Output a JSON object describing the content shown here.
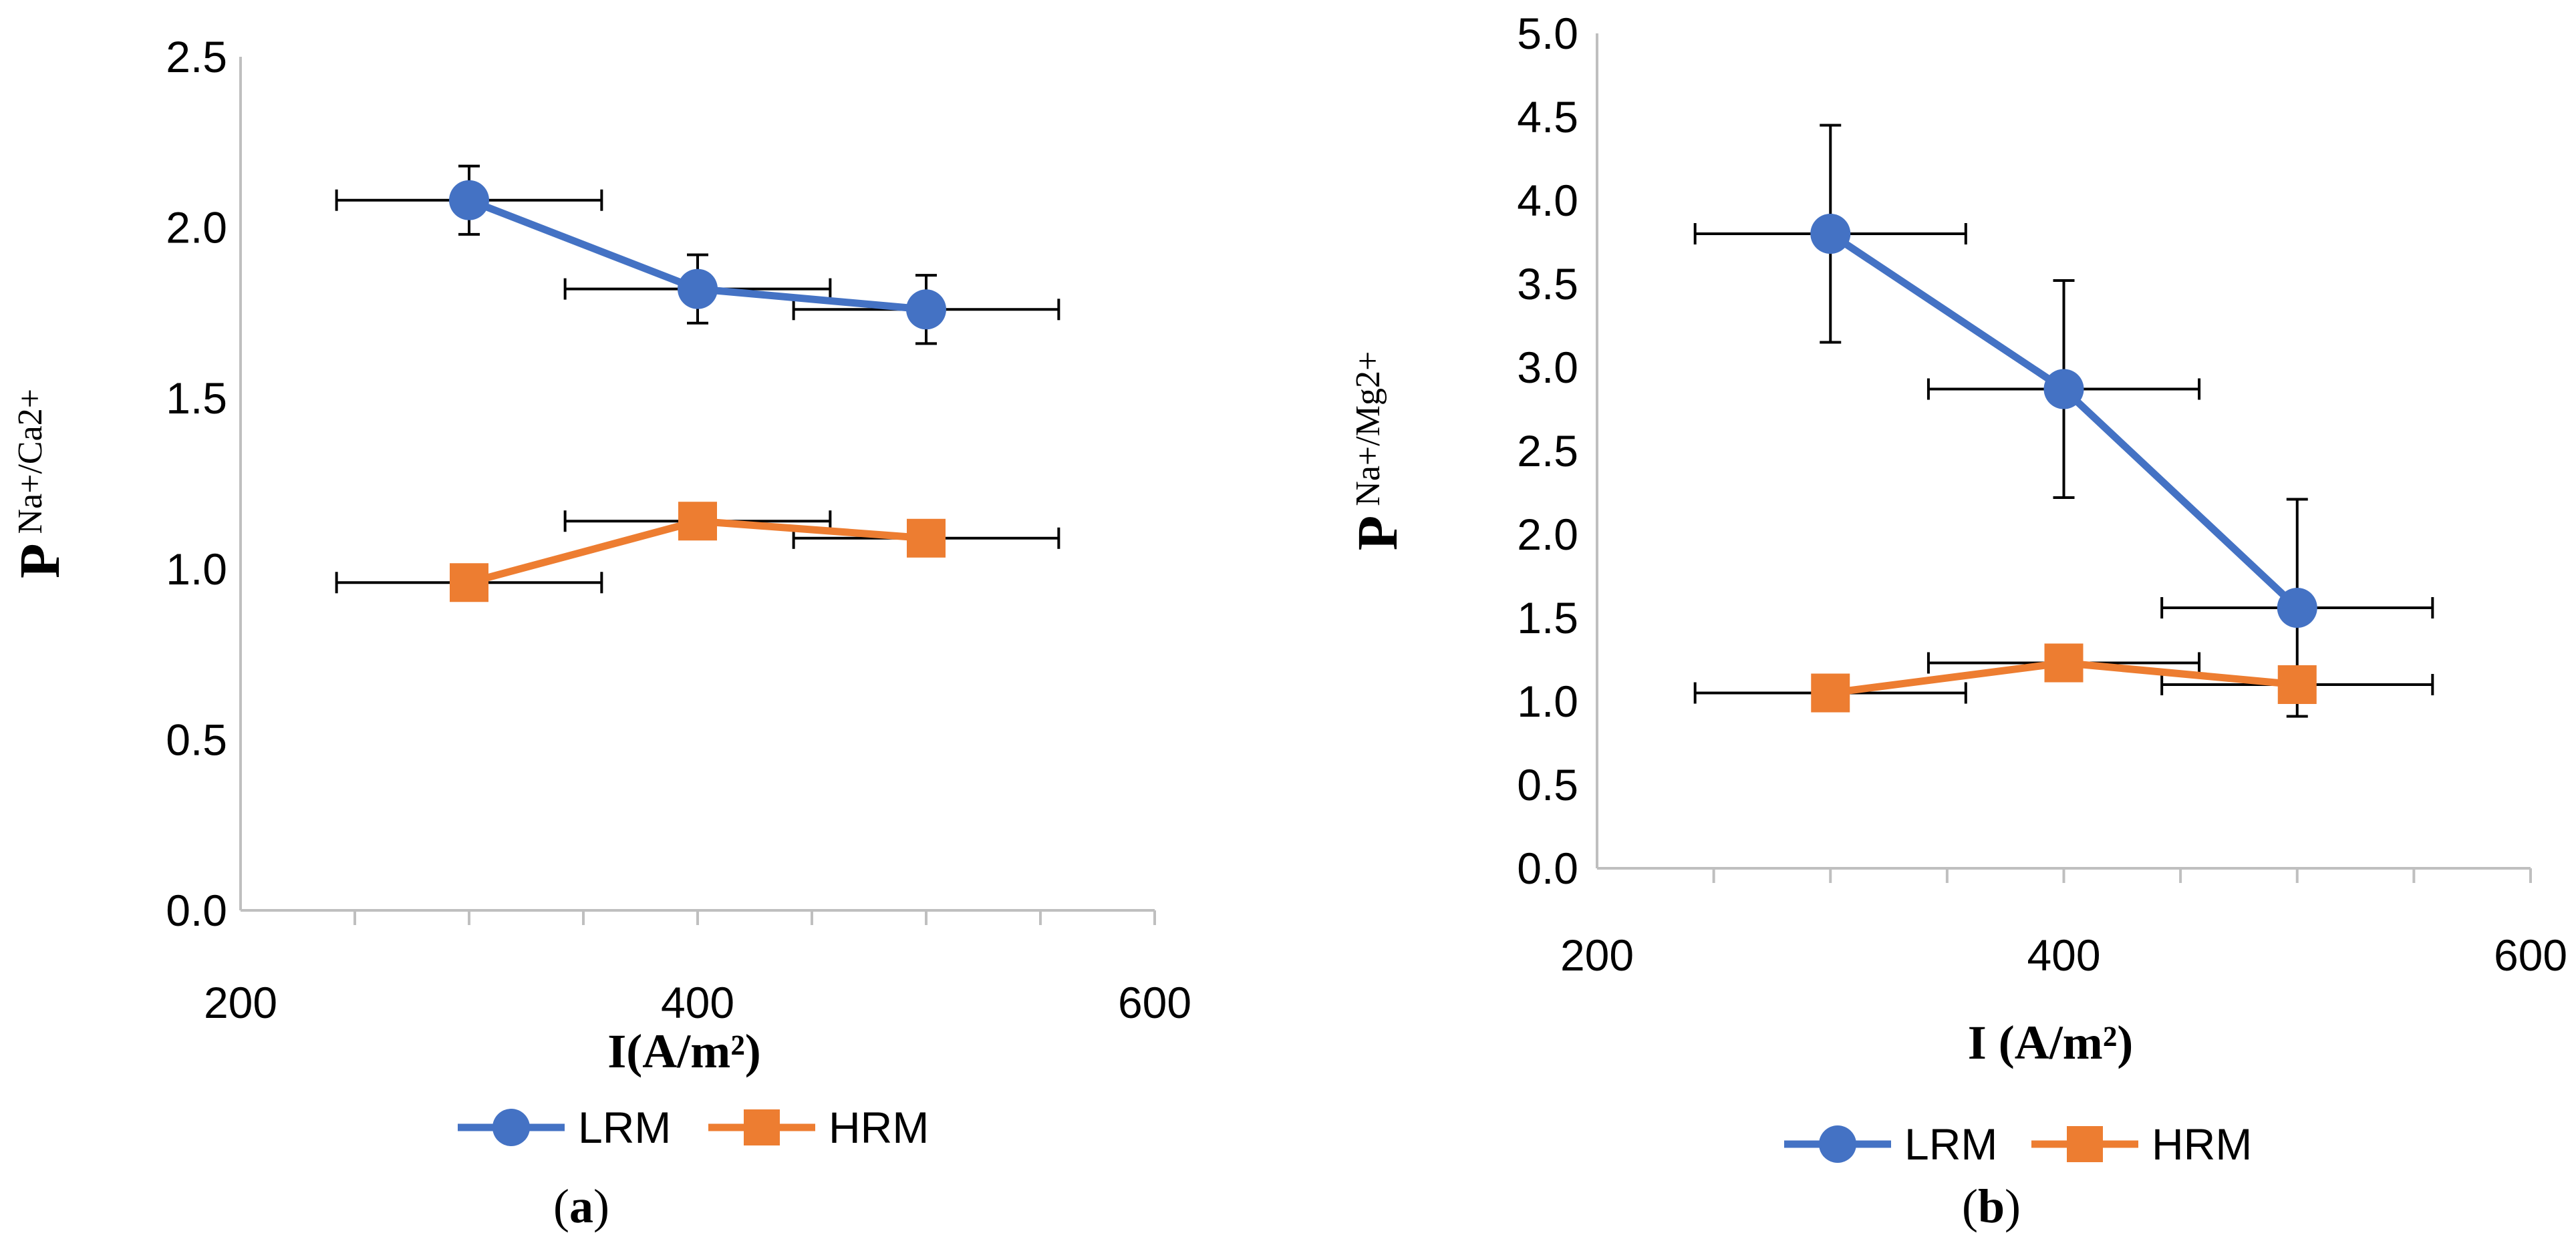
{
  "figure": {
    "caption_a": {
      "open": "(",
      "letter": "a",
      "close": ")"
    },
    "caption_b": {
      "open": "(",
      "letter": "b",
      "close": ")"
    }
  },
  "chart_data": [
    {
      "id": "a",
      "type": "scatter",
      "xlabel": "I(A/m²)",
      "ylabel_main": "P",
      "ylabel_sub": "Na+/Ca2+",
      "xlim": [
        200,
        600
      ],
      "ylim": [
        0,
        2.5
      ],
      "x_ticks": [
        200,
        400,
        600
      ],
      "x_tick_labels": [
        "200",
        "400",
        "600"
      ],
      "x_minor_ticks": [
        250,
        300,
        350,
        400,
        450,
        500,
        550
      ],
      "y_ticks": [
        0,
        0.5,
        1.0,
        1.5,
        2.0,
        2.5
      ],
      "y_tick_labels": [
        "0.0",
        "0.5",
        "1.0",
        "1.5",
        "2.0",
        "2.5"
      ],
      "x_error": 58,
      "series": [
        {
          "name": "LRM",
          "color": "#4472C4",
          "marker": "circle",
          "x": [
            300,
            400,
            500
          ],
          "y": [
            2.08,
            1.82,
            1.76
          ],
          "y_err": [
            0.1,
            0.1,
            0.1
          ]
        },
        {
          "name": "HRM",
          "color": "#ED7D31",
          "marker": "square",
          "x": [
            300,
            400,
            500
          ],
          "y": [
            0.96,
            1.14,
            1.09
          ],
          "y_err": [
            0,
            0,
            0
          ]
        }
      ],
      "legend": [
        "LRM",
        "HRM"
      ]
    },
    {
      "id": "b",
      "type": "scatter",
      "xlabel": "I (A/m²)",
      "ylabel_main": "P",
      "ylabel_sub": "Na+/Mg2+",
      "xlim": [
        200,
        600
      ],
      "ylim": [
        0,
        5
      ],
      "x_ticks": [
        200,
        400,
        600
      ],
      "x_tick_labels": [
        "200",
        "400",
        "600"
      ],
      "x_minor_ticks": [
        250,
        300,
        350,
        400,
        450,
        500,
        550
      ],
      "y_ticks": [
        0,
        0.5,
        1.0,
        1.5,
        2.0,
        2.5,
        3.0,
        3.5,
        4.0,
        4.5,
        5.0
      ],
      "y_tick_labels": [
        "0.0",
        "0.5",
        "1.0",
        "1.5",
        "2.0",
        "2.5",
        "3.0",
        "3.5",
        "4.0",
        "4.5",
        "5.0"
      ],
      "x_error": 58,
      "series": [
        {
          "name": "LRM",
          "color": "#4472C4",
          "marker": "circle",
          "x": [
            300,
            400,
            500
          ],
          "y": [
            3.8,
            2.87,
            1.56
          ],
          "y_err": [
            0.65,
            0.65,
            0.65
          ]
        },
        {
          "name": "HRM",
          "color": "#ED7D31",
          "marker": "square",
          "x": [
            300,
            400,
            500
          ],
          "y": [
            1.05,
            1.23,
            1.1
          ],
          "y_err": [
            0,
            0,
            0
          ]
        }
      ],
      "legend": [
        "LRM",
        "HRM"
      ]
    }
  ]
}
